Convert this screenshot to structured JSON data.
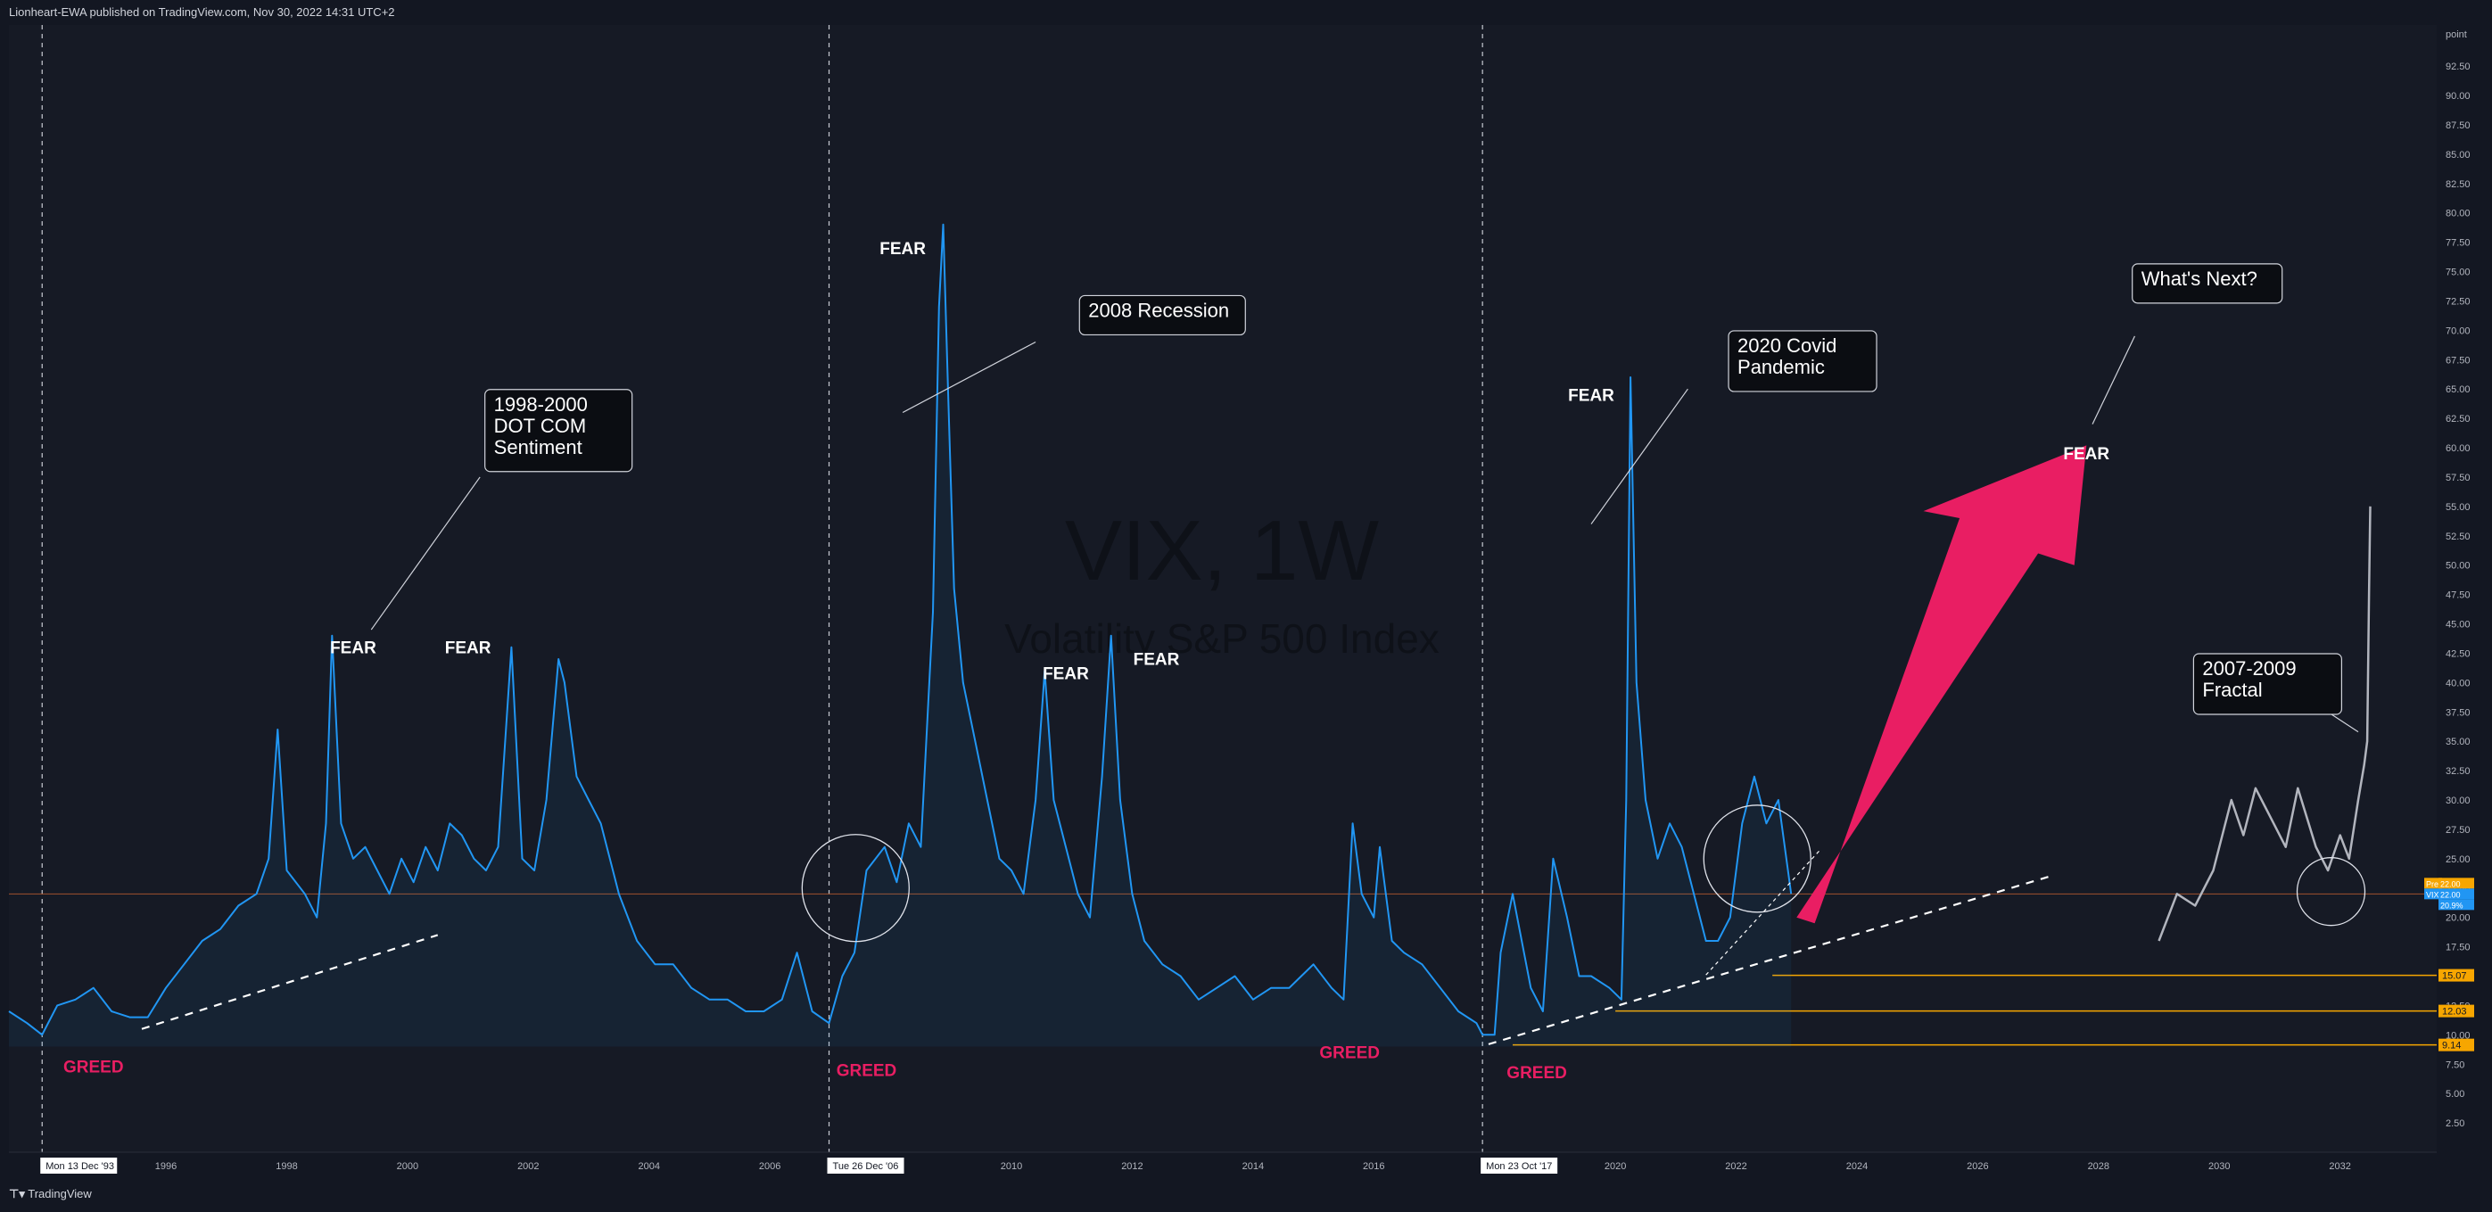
{
  "header": {
    "published": "Lionheart-EWA published on TradingView.com, Nov 30, 2022 14:31 UTC+2"
  },
  "footer": {
    "brand": "TradingView"
  },
  "colors": {
    "background": "#131722",
    "panel": "#161a25",
    "vix_line": "#2196f3",
    "fractal_line": "#b2b5be",
    "greed": "#e91e63",
    "arrow": "#e91e63",
    "level_line": "#f7a600",
    "text": "#ffffff",
    "axis_text": "#b2b5be"
  },
  "chart_data": {
    "type": "line",
    "title": "VIX, 1W",
    "subtitle": "Volatility S&P 500 Index",
    "ylabel": "point",
    "xlim": [
      1993.4,
      2033.6
    ],
    "ylim": [
      0,
      96
    ],
    "y_ticks": [
      "2.50",
      "5.00",
      "7.50",
      "10.00",
      "12.50",
      "15.00",
      "17.50",
      "20.00",
      "22.50",
      "25.00",
      "27.50",
      "30.00",
      "32.50",
      "35.00",
      "37.50",
      "40.00",
      "42.50",
      "45.00",
      "47.50",
      "50.00",
      "52.50",
      "55.00",
      "57.50",
      "60.00",
      "62.50",
      "65.00",
      "67.50",
      "70.00",
      "72.50",
      "75.00",
      "77.50",
      "80.00",
      "82.50",
      "85.00",
      "87.50",
      "90.00",
      "92.50"
    ],
    "x_ticks": [
      "1996",
      "1998",
      "2000",
      "2002",
      "2004",
      "2006",
      "2008",
      "2010",
      "2012",
      "2014",
      "2016",
      "2018",
      "2020",
      "2022",
      "2024",
      "2026",
      "2028",
      "2030",
      "2032"
    ],
    "x_tick_values": [
      1996,
      1998,
      2000,
      2002,
      2004,
      2006,
      2008,
      2010,
      2012,
      2014,
      2016,
      2018,
      2020,
      2022,
      2024,
      2026,
      2028,
      2030,
      2032
    ],
    "date_markers": [
      {
        "label": "Mon 13 Dec '93",
        "x": 1993.95
      },
      {
        "label": "Tue 26 Dec '06",
        "x": 2006.98
      },
      {
        "label": "Mon 23 Oct '17",
        "x": 2017.8
      }
    ],
    "series": [
      {
        "role": "vix",
        "x": [
          1993.4,
          1993.7,
          1993.95,
          1994.2,
          1994.5,
          1994.8,
          1995.1,
          1995.4,
          1995.7,
          1996.0,
          1996.3,
          1996.6,
          1996.9,
          1997.2,
          1997.5,
          1997.7,
          1997.85,
          1998.0,
          1998.3,
          1998.5,
          1998.65,
          1998.75,
          1998.9,
          1999.1,
          1999.3,
          1999.5,
          1999.7,
          1999.9,
          2000.1,
          2000.3,
          2000.5,
          2000.7,
          2000.9,
          2001.1,
          2001.3,
          2001.5,
          2001.72,
          2001.9,
          2002.1,
          2002.3,
          2002.5,
          2002.6,
          2002.8,
          2003.0,
          2003.2,
          2003.5,
          2003.8,
          2004.1,
          2004.4,
          2004.7,
          2005.0,
          2005.3,
          2005.6,
          2005.9,
          2006.2,
          2006.45,
          2006.7,
          2006.98,
          2007.2,
          2007.4,
          2007.6,
          2007.9,
          2008.1,
          2008.3,
          2008.5,
          2008.7,
          2008.8,
          2008.87,
          2008.95,
          2009.05,
          2009.2,
          2009.4,
          2009.6,
          2009.8,
          2010.0,
          2010.2,
          2010.4,
          2010.55,
          2010.7,
          2010.9,
          2011.1,
          2011.3,
          2011.5,
          2011.65,
          2011.8,
          2012.0,
          2012.2,
          2012.5,
          2012.8,
          2013.1,
          2013.4,
          2013.7,
          2014.0,
          2014.3,
          2014.6,
          2014.8,
          2015.0,
          2015.3,
          2015.5,
          2015.65,
          2015.8,
          2016.0,
          2016.1,
          2016.3,
          2016.5,
          2016.8,
          2017.1,
          2017.4,
          2017.7,
          2017.8,
          2018.0,
          2018.1,
          2018.3,
          2018.6,
          2018.8,
          2018.97,
          2019.2,
          2019.4,
          2019.6,
          2019.9,
          2020.1,
          2020.18,
          2020.25,
          2020.35,
          2020.5,
          2020.7,
          2020.9,
          2021.1,
          2021.3,
          2021.5,
          2021.7,
          2021.9,
          2022.1,
          2022.3,
          2022.5,
          2022.7,
          2022.91
        ],
        "y": [
          12,
          11,
          10,
          12.5,
          13,
          14,
          12,
          11.5,
          11.5,
          14,
          16,
          18,
          19,
          21,
          22,
          25,
          36,
          24,
          22,
          20,
          28,
          44,
          28,
          25,
          26,
          24,
          22,
          25,
          23,
          26,
          24,
          28,
          27,
          25,
          24,
          26,
          43,
          25,
          24,
          30,
          42,
          40,
          32,
          30,
          28,
          22,
          18,
          16,
          16,
          14,
          13,
          13,
          12,
          12,
          13,
          17,
          12,
          11,
          15,
          17,
          24,
          26,
          23,
          28,
          26,
          46,
          72,
          79,
          65,
          48,
          40,
          35,
          30,
          25,
          24,
          22,
          30,
          41,
          30,
          26,
          22,
          20,
          32,
          44,
          30,
          22,
          18,
          16,
          15,
          13,
          14,
          15,
          13,
          14,
          14,
          15,
          16,
          14,
          13,
          28,
          22,
          20,
          26,
          18,
          17,
          16,
          14,
          12,
          11,
          10,
          10,
          17,
          22,
          14,
          12,
          25,
          20,
          15,
          15,
          14,
          13,
          30,
          66,
          40,
          30,
          25,
          28,
          26,
          22,
          18,
          18,
          20,
          28,
          32,
          28,
          30,
          22
        ]
      },
      {
        "role": "fractal",
        "x": [
          2029.0,
          2029.3,
          2029.6,
          2029.9,
          2030.2,
          2030.4,
          2030.6,
          2030.9,
          2031.1,
          2031.3,
          2031.6,
          2031.8,
          2032.0,
          2032.15,
          2032.3,
          2032.4,
          2032.45,
          2032.48,
          2032.5
        ],
        "y": [
          18,
          22,
          21,
          24,
          30,
          27,
          31,
          28,
          26,
          31,
          26,
          24,
          27,
          25,
          30,
          33,
          35,
          48,
          55
        ]
      }
    ],
    "reference_levels": [
      {
        "label": "22.00",
        "value": 22.0
      },
      {
        "label": "15.07",
        "value": 15.07
      },
      {
        "label": "12.03",
        "value": 12.03
      },
      {
        "label": "9.14",
        "value": 9.14
      }
    ],
    "axis_badges": [
      "Pre",
      "VIX",
      "22.00",
      "22.00",
      "20.9%"
    ],
    "annotations": [
      {
        "text": "FEAR",
        "x": 2008.2,
        "y": 76.5
      },
      {
        "text": "FEAR",
        "x": 1999.1,
        "y": 42.5
      },
      {
        "text": "FEAR",
        "x": 2001.0,
        "y": 42.5
      },
      {
        "text": "FEAR",
        "x": 2010.9,
        "y": 40.3
      },
      {
        "text": "FEAR",
        "x": 2012.4,
        "y": 41.5
      },
      {
        "text": "FEAR",
        "x": 2019.6,
        "y": 64.0
      },
      {
        "text": "FEAR",
        "x": 2027.8,
        "y": 59.0
      },
      {
        "text": "GREED",
        "x": 1994.8,
        "y": 6.8
      },
      {
        "text": "GREED",
        "x": 2007.6,
        "y": 6.5
      },
      {
        "text": "GREED",
        "x": 2015.6,
        "y": 8.0
      },
      {
        "text": "GREED",
        "x": 2018.7,
        "y": 6.3
      }
    ],
    "callouts": [
      {
        "lines": [
          "1998-2000",
          "DOT COM",
          "Sentiment"
        ],
        "x": 2002.5,
        "y": 64.5
      },
      {
        "lines": [
          "2008 Recession"
        ],
        "x": 2012.5,
        "y": 72.5
      },
      {
        "lines": [
          "2020 Covid",
          "Pandemic"
        ],
        "x": 2023.1,
        "y": 69.5
      },
      {
        "lines": [
          "What's Next?"
        ],
        "x": 2029.8,
        "y": 75.2
      },
      {
        "lines": [
          "2007-2009",
          "Fractal"
        ],
        "x": 2030.8,
        "y": 42.0
      }
    ]
  }
}
